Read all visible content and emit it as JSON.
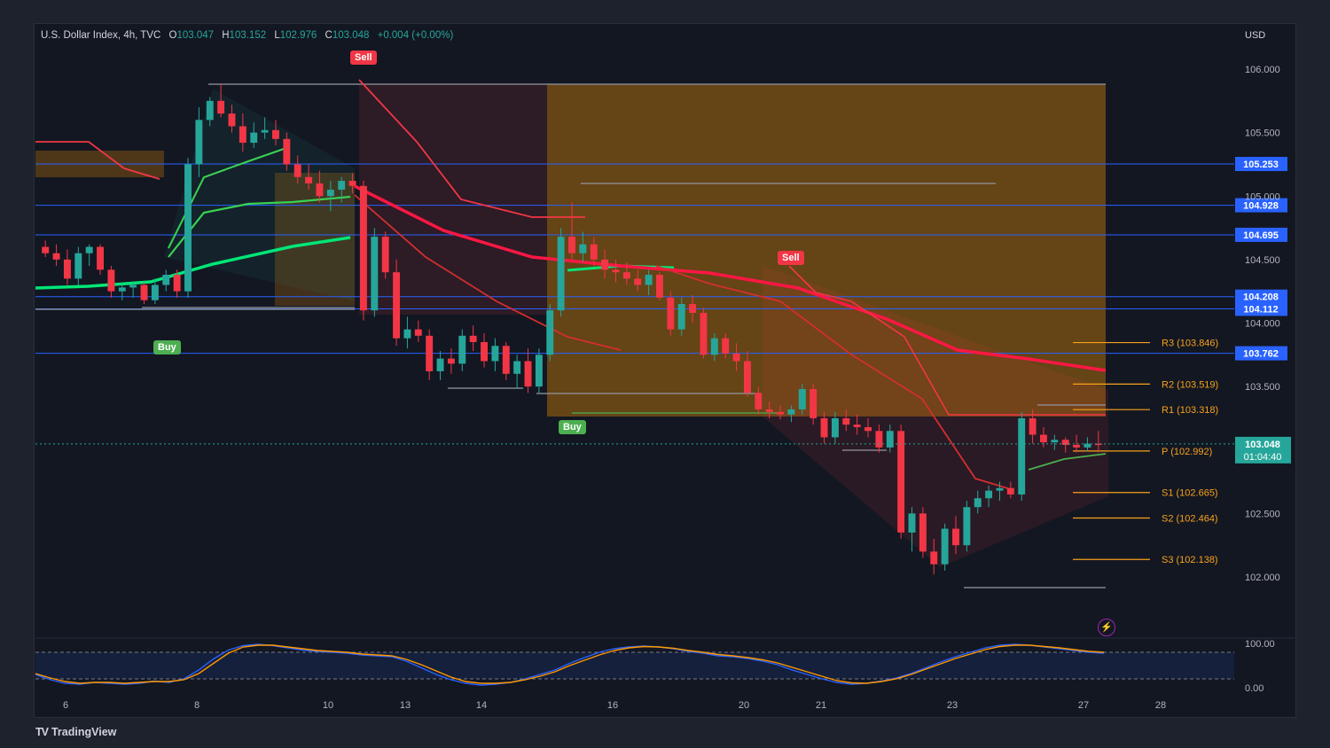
{
  "header": {
    "symbol": "U.S. Dollar Index, 4h, TVC",
    "open_label": "O",
    "open": "103.047",
    "high_label": "H",
    "high": "103.152",
    "low_label": "L",
    "low": "102.976",
    "close_label": "C",
    "close": "103.048",
    "change": "+0.004 (+0.00%)"
  },
  "currency": "USD",
  "branding": "TradingView",
  "colors": {
    "up": "#26a69a",
    "down": "#f23645",
    "blue_level": "#2962ff",
    "pivot": "#f7a21b",
    "accent_green": "#00e676",
    "accent_red": "#ff1744",
    "orange_zone": "#ff9800"
  },
  "signals": [
    {
      "type": "Sell",
      "label": "Sell"
    },
    {
      "type": "Buy",
      "label": "Buy"
    },
    {
      "type": "Buy",
      "label": "Buy"
    },
    {
      "type": "Sell",
      "label": "Sell"
    }
  ],
  "chart_data": {
    "type": "candlestick",
    "price_axis": {
      "range": [
        101.55,
        106.45
      ],
      "ticks": [
        "106.000",
        "105.500",
        "105.000",
        "104.500",
        "104.000",
        "103.500",
        "102.500",
        "102.000"
      ]
    },
    "x_axis": {
      "ticks": [
        "6",
        "8",
        "10",
        "13",
        "14",
        "16",
        "20",
        "21",
        "23",
        "27",
        "28"
      ]
    },
    "horizontal_levels": [
      {
        "label": "105.253",
        "value": 105.253
      },
      {
        "label": "104.928",
        "value": 104.928
      },
      {
        "label": "104.695",
        "value": 104.695
      },
      {
        "label": "104.208",
        "value": 104.208
      },
      {
        "label": "104.112",
        "value": 104.112
      },
      {
        "label": "103.762",
        "value": 103.762
      }
    ],
    "current_price": {
      "value": 103.048,
      "label": "103.048",
      "countdown": "01:04:40"
    },
    "pivots": [
      {
        "label": "R3 (103.846)",
        "value": 103.846
      },
      {
        "label": "R2 (103.519)",
        "value": 103.519
      },
      {
        "label": "R1 (103.318)",
        "value": 103.318
      },
      {
        "label": "P (102.992)",
        "value": 102.992
      },
      {
        "label": "S1 (102.665)",
        "value": 102.665
      },
      {
        "label": "S2 (102.464)",
        "value": 102.464
      },
      {
        "label": "S3 (102.138)",
        "value": 102.138
      }
    ],
    "candles": [
      [
        104.6,
        104.65,
        104.52,
        104.55
      ],
      [
        104.55,
        104.62,
        104.45,
        104.5
      ],
      [
        104.5,
        104.58,
        104.3,
        104.35
      ],
      [
        104.35,
        104.6,
        104.3,
        104.55
      ],
      [
        104.55,
        104.62,
        104.45,
        104.6
      ],
      [
        104.6,
        104.62,
        104.38,
        104.42
      ],
      [
        104.42,
        104.45,
        104.2,
        104.25
      ],
      [
        104.25,
        104.32,
        104.18,
        104.28
      ],
      [
        104.28,
        104.33,
        104.2,
        104.3
      ],
      [
        104.3,
        104.32,
        104.15,
        104.18
      ],
      [
        104.18,
        104.35,
        104.15,
        104.3
      ],
      [
        104.3,
        104.42,
        104.25,
        104.38
      ],
      [
        104.38,
        104.42,
        104.2,
        104.25
      ],
      [
        104.25,
        105.3,
        104.2,
        105.25
      ],
      [
        105.25,
        105.7,
        105.15,
        105.6
      ],
      [
        105.6,
        105.78,
        105.55,
        105.75
      ],
      [
        105.75,
        105.88,
        105.62,
        105.65
      ],
      [
        105.65,
        105.72,
        105.5,
        105.55
      ],
      [
        105.55,
        105.65,
        105.35,
        105.42
      ],
      [
        105.42,
        105.58,
        105.38,
        105.5
      ],
      [
        105.5,
        105.62,
        105.45,
        105.52
      ],
      [
        105.52,
        105.6,
        105.4,
        105.45
      ],
      [
        105.45,
        105.5,
        105.2,
        105.25
      ],
      [
        105.25,
        105.32,
        105.1,
        105.15
      ],
      [
        105.15,
        105.25,
        105.05,
        105.1
      ],
      [
        105.1,
        105.2,
        104.95,
        105.0
      ],
      [
        105.0,
        105.12,
        104.88,
        105.05
      ],
      [
        105.05,
        105.15,
        104.95,
        105.12
      ],
      [
        105.12,
        105.18,
        105.02,
        105.08
      ],
      [
        105.08,
        105.12,
        104.02,
        104.1
      ],
      [
        104.1,
        104.75,
        104.05,
        104.68
      ],
      [
        104.68,
        104.72,
        104.35,
        104.4
      ],
      [
        104.4,
        104.5,
        103.82,
        103.88
      ],
      [
        103.88,
        104.05,
        103.8,
        103.95
      ],
      [
        103.95,
        104.02,
        103.85,
        103.9
      ],
      [
        103.9,
        103.95,
        103.55,
        103.62
      ],
      [
        103.62,
        103.78,
        103.55,
        103.72
      ],
      [
        103.72,
        103.8,
        103.6,
        103.68
      ],
      [
        103.68,
        103.95,
        103.62,
        103.9
      ],
      [
        103.9,
        103.98,
        103.78,
        103.85
      ],
      [
        103.85,
        103.92,
        103.65,
        103.7
      ],
      [
        103.7,
        103.88,
        103.62,
        103.82
      ],
      [
        103.82,
        103.85,
        103.55,
        103.6
      ],
      [
        103.6,
        103.75,
        103.48,
        103.7
      ],
      [
        103.7,
        103.8,
        103.45,
        103.5
      ],
      [
        103.5,
        103.8,
        103.45,
        103.75
      ],
      [
        103.75,
        104.15,
        103.7,
        104.1
      ],
      [
        104.1,
        104.75,
        104.05,
        104.68
      ],
      [
        104.68,
        104.95,
        104.5,
        104.55
      ],
      [
        104.55,
        104.72,
        104.48,
        104.62
      ],
      [
        104.62,
        104.68,
        104.45,
        104.5
      ],
      [
        104.5,
        104.58,
        104.35,
        104.42
      ],
      [
        104.42,
        104.5,
        104.32,
        104.4
      ],
      [
        104.4,
        104.48,
        104.3,
        104.35
      ],
      [
        104.35,
        104.42,
        104.25,
        104.3
      ],
      [
        104.3,
        104.42,
        104.22,
        104.38
      ],
      [
        104.38,
        104.4,
        104.18,
        104.2
      ],
      [
        104.2,
        104.25,
        103.9,
        103.95
      ],
      [
        103.95,
        104.2,
        103.9,
        104.15
      ],
      [
        104.15,
        104.22,
        104.0,
        104.08
      ],
      [
        104.08,
        104.12,
        103.72,
        103.75
      ],
      [
        103.75,
        103.92,
        103.7,
        103.88
      ],
      [
        103.88,
        103.92,
        103.72,
        103.76
      ],
      [
        103.76,
        103.84,
        103.62,
        103.7
      ],
      [
        103.7,
        103.78,
        103.42,
        103.45
      ],
      [
        103.45,
        103.5,
        103.28,
        103.32
      ],
      [
        103.32,
        103.38,
        103.25,
        103.3
      ],
      [
        103.3,
        103.35,
        103.24,
        103.28
      ],
      [
        103.28,
        103.35,
        103.22,
        103.32
      ],
      [
        103.32,
        103.52,
        103.28,
        103.48
      ],
      [
        103.48,
        103.52,
        103.2,
        103.25
      ],
      [
        103.25,
        103.3,
        103.05,
        103.1
      ],
      [
        103.1,
        103.3,
        103.05,
        103.25
      ],
      [
        103.25,
        103.32,
        103.15,
        103.2
      ],
      [
        103.2,
        103.28,
        103.12,
        103.18
      ],
      [
        103.18,
        103.25,
        103.1,
        103.15
      ],
      [
        103.15,
        103.2,
        102.98,
        103.02
      ],
      [
        103.02,
        103.2,
        102.98,
        103.15
      ],
      [
        103.15,
        103.2,
        102.3,
        102.35
      ],
      [
        102.35,
        102.55,
        102.2,
        102.5
      ],
      [
        102.5,
        102.55,
        102.15,
        102.2
      ],
      [
        102.2,
        102.3,
        102.02,
        102.1
      ],
      [
        102.1,
        102.42,
        102.05,
        102.38
      ],
      [
        102.38,
        102.48,
        102.18,
        102.25
      ],
      [
        102.25,
        102.6,
        102.2,
        102.55
      ],
      [
        102.55,
        102.68,
        102.5,
        102.62
      ],
      [
        102.62,
        102.72,
        102.55,
        102.68
      ],
      [
        102.68,
        102.75,
        102.6,
        102.7
      ],
      [
        102.7,
        102.75,
        102.62,
        102.65
      ],
      [
        102.65,
        103.3,
        102.6,
        103.25
      ],
      [
        103.25,
        103.32,
        103.05,
        103.12
      ],
      [
        103.12,
        103.18,
        103.02,
        103.06
      ],
      [
        103.06,
        103.12,
        103.0,
        103.08
      ],
      [
        103.08,
        103.1,
        102.98,
        103.04
      ],
      [
        103.04,
        103.12,
        102.98,
        103.02
      ],
      [
        103.02,
        103.1,
        102.99,
        103.05
      ],
      [
        103.05,
        103.15,
        102.98,
        103.048
      ]
    ],
    "oscillator": {
      "axis_ticks": [
        "100.00",
        "0.00"
      ],
      "range": [
        0,
        100
      ],
      "band": [
        20,
        80
      ],
      "series": [
        {
          "color": "#2962ff",
          "values": [
            30,
            18,
            10,
            8,
            12,
            10,
            8,
            10,
            15,
            12,
            20,
            40,
            65,
            85,
            95,
            98,
            95,
            90,
            85,
            82,
            80,
            78,
            74,
            72,
            70,
            60,
            45,
            30,
            18,
            10,
            6,
            8,
            12,
            20,
            30,
            40,
            55,
            68,
            80,
            88,
            92,
            94,
            92,
            88,
            82,
            78,
            72,
            70,
            66,
            60,
            52,
            40,
            30,
            20,
            12,
            8,
            10,
            15,
            22,
            32,
            45,
            58,
            70,
            80,
            90,
            96,
            98,
            96,
            92,
            88,
            84,
            80,
            78
          ]
        },
        {
          "color": "#ff9800",
          "values": [
            32,
            22,
            14,
            10,
            12,
            12,
            10,
            12,
            14,
            14,
            18,
            32,
            55,
            78,
            92,
            96,
            96,
            92,
            88,
            84,
            82,
            80,
            76,
            74,
            72,
            64,
            52,
            38,
            24,
            14,
            10,
            10,
            12,
            18,
            26,
            36,
            50,
            62,
            74,
            84,
            90,
            93,
            92,
            89,
            84,
            80,
            75,
            72,
            68,
            63,
            56,
            46,
            36,
            26,
            16,
            11,
            10,
            14,
            20,
            30,
            42,
            54,
            66,
            76,
            86,
            93,
            96,
            96,
            93,
            90,
            86,
            82,
            80
          ]
        }
      ]
    }
  }
}
